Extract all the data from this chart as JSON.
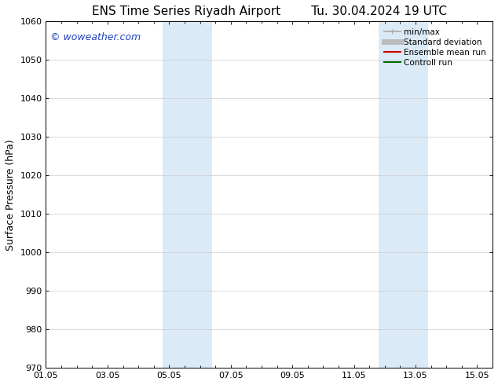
{
  "title_left": "ENS Time Series Riyadh Airport",
  "title_right": "Tu. 30.04.2024 19 UTC",
  "ylabel": "Surface Pressure (hPa)",
  "ylim": [
    970,
    1060
  ],
  "xlim": [
    0,
    14.5
  ],
  "yticks": [
    970,
    980,
    990,
    1000,
    1010,
    1020,
    1030,
    1040,
    1050,
    1060
  ],
  "xtick_positions": [
    0,
    2,
    4,
    6,
    8,
    10,
    12,
    14
  ],
  "xtick_labels": [
    "01.05",
    "03.05",
    "05.05",
    "07.05",
    "09.05",
    "11.05",
    "13.05",
    "15.05"
  ],
  "shaded_bands": [
    {
      "x_start": 3.8,
      "x_end": 5.4
    },
    {
      "x_start": 10.8,
      "x_end": 12.4
    }
  ],
  "shaded_color": "#daeaf7",
  "background_color": "#ffffff",
  "watermark_text": "© woweather.com",
  "watermark_color": "#2244bb",
  "legend_entries": [
    {
      "label": "min/max",
      "color": "#aaaaaa",
      "lw": 1.2,
      "style": "minmax"
    },
    {
      "label": "Standard deviation",
      "color": "#bbbbbb",
      "lw": 5,
      "style": "line"
    },
    {
      "label": "Ensemble mean run",
      "color": "#cc0000",
      "lw": 1.5,
      "style": "line"
    },
    {
      "label": "Controll run",
      "color": "#006600",
      "lw": 1.5,
      "style": "line"
    }
  ],
  "grid_color": "#cccccc",
  "title_fontsize": 11,
  "tick_fontsize": 8,
  "ylabel_fontsize": 9,
  "legend_fontsize": 7.5,
  "watermark_fontsize": 9
}
